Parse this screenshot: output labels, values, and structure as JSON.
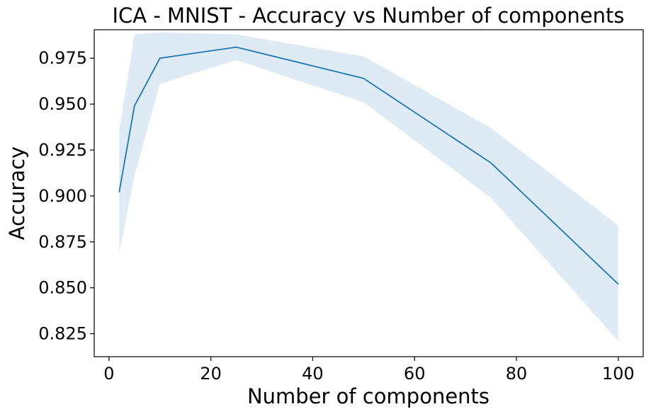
{
  "chart_data": {
    "type": "line",
    "title": "ICA - MNIST - Accuracy vs Number of components",
    "xlabel": "Number of components",
    "ylabel": "Accuracy",
    "x": [
      2,
      5,
      10,
      25,
      50,
      75,
      100
    ],
    "series": [
      {
        "values": [
          0.902,
          0.949,
          0.975,
          0.981,
          0.964,
          0.918,
          0.852
        ],
        "lower": [
          0.869,
          0.911,
          0.961,
          0.974,
          0.951,
          0.899,
          0.821
        ],
        "upper": [
          0.935,
          0.988,
          0.989,
          0.988,
          0.976,
          0.937,
          0.884
        ],
        "color": "#1f77b4",
        "band_color": "#1f77b4",
        "band_opacity": 0.15
      }
    ],
    "xlim": [
      -2.9,
      104.9
    ],
    "ylim": [
      0.8125,
      0.9905
    ],
    "xticks": [
      0,
      20,
      40,
      60,
      80,
      100
    ],
    "yticks": [
      0.825,
      0.85,
      0.875,
      0.9,
      0.925,
      0.95,
      0.975
    ],
    "xtick_labels": [
      "0",
      "20",
      "40",
      "60",
      "80",
      "100"
    ],
    "ytick_labels": [
      "0.825",
      "0.850",
      "0.875",
      "0.900",
      "0.925",
      "0.950",
      "0.975"
    ],
    "grid": false,
    "legend": "none"
  }
}
